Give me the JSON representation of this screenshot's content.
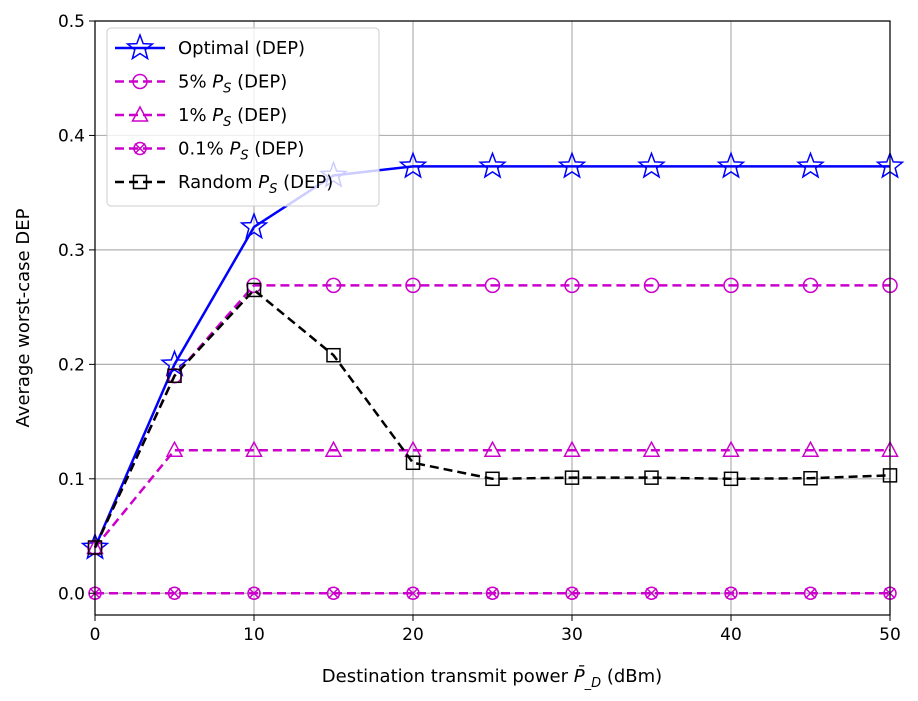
{
  "chart_data": {
    "type": "line",
    "title": "",
    "xlabel": "Destination transmit power P̄_D (dBm)",
    "xlabel_parts": {
      "pre": "Destination transmit power ",
      "sym": "P",
      "sub": "D",
      "post": " (dBm)"
    },
    "ylabel": "Average worst-case DEP",
    "xlim": [
      0,
      50
    ],
    "ylim": [
      -0.019,
      0.5
    ],
    "xticks": [
      0,
      10,
      20,
      30,
      40,
      50
    ],
    "yticks": [
      0.0,
      0.1,
      0.2,
      0.3,
      0.4,
      0.5
    ],
    "ytick_labels": [
      "0.0",
      "0.1",
      "0.2",
      "0.3",
      "0.4",
      "0.5"
    ],
    "grid": true,
    "legend_placement": "top-left",
    "x": [
      0,
      5,
      10,
      15,
      20,
      25,
      30,
      35,
      40,
      45,
      50
    ],
    "series": [
      {
        "name": "Optimal (DEP)",
        "label_pre": "Optimal (DEP)",
        "label_sym": "",
        "label_sub": "",
        "label_post": "",
        "color": "#0000ff",
        "dash": "solid",
        "marker": "star",
        "values": [
          0.04,
          0.2,
          0.32,
          0.365,
          0.373,
          0.373,
          0.373,
          0.373,
          0.373,
          0.373,
          0.373
        ]
      },
      {
        "name": "5% P_S (DEP)",
        "label_pre": "5% ",
        "label_sym": "P",
        "label_sub": "S",
        "label_post": " (DEP)",
        "color": "#cc00cc",
        "dash": "dashed",
        "marker": "circle",
        "values": [
          0.04,
          0.19,
          0.269,
          0.269,
          0.269,
          0.269,
          0.269,
          0.269,
          0.269,
          0.269,
          0.269
        ]
      },
      {
        "name": "1% P_S (DEP)",
        "label_pre": "1% ",
        "label_sym": "P",
        "label_sub": "S",
        "label_post": " (DEP)",
        "color": "#cc00cc",
        "dash": "dashed",
        "marker": "triangle",
        "values": [
          0.04,
          0.125,
          0.125,
          0.125,
          0.125,
          0.125,
          0.125,
          0.125,
          0.125,
          0.125,
          0.125
        ]
      },
      {
        "name": "0.1% P_S (DEP)",
        "label_pre": "0.1% ",
        "label_sym": "P",
        "label_sub": "S",
        "label_post": " (DEP)",
        "color": "#cc00cc",
        "dash": "dashed",
        "marker": "x-circle",
        "values": [
          0.0,
          0.0,
          0.0,
          0.0,
          0.0,
          0.0,
          0.0,
          0.0,
          0.0,
          0.0,
          0.0
        ]
      },
      {
        "name": "Random P_S (DEP)",
        "label_pre": "Random ",
        "label_sym": "P",
        "label_sub": "S",
        "label_post": " (DEP)",
        "color": "#000000",
        "dash": "dashed",
        "marker": "square",
        "values": [
          0.04,
          0.19,
          0.265,
          0.208,
          0.114,
          0.1,
          0.101,
          0.101,
          0.1,
          0.1005,
          0.103
        ]
      }
    ]
  }
}
